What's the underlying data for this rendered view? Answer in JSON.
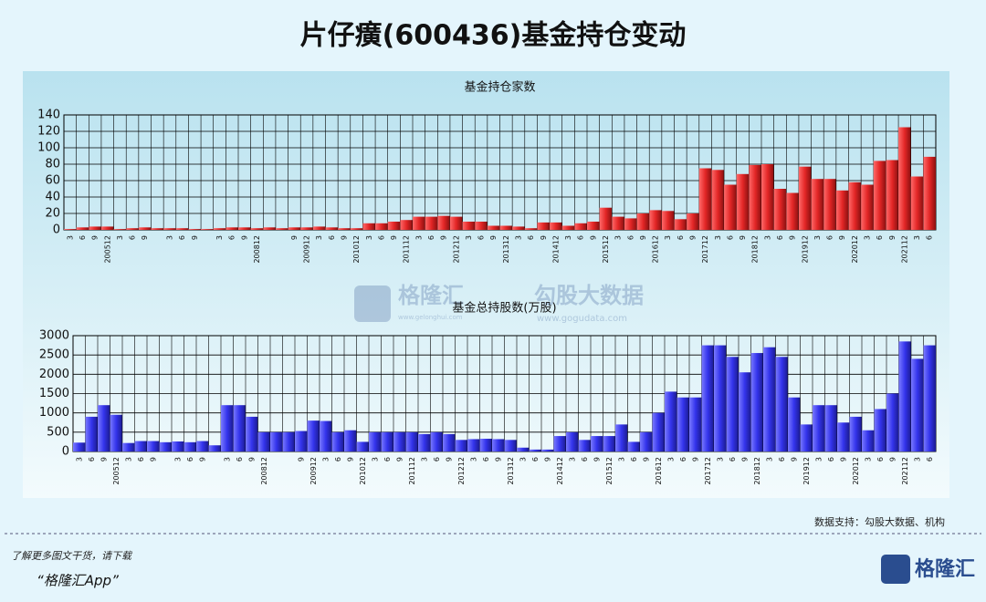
{
  "title": "片仔癀(600436)基金持仓变动",
  "chart_data": [
    {
      "type": "bar",
      "title": "基金持仓家数",
      "color": "#e32626",
      "categories": [
        "3",
        "6",
        "9",
        "200512",
        "3",
        "6",
        "9",
        null,
        "3",
        "6",
        "9",
        null,
        "3",
        "6",
        "9",
        "200812",
        null,
        null,
        "9",
        "200912",
        "3",
        "6",
        "9",
        "201012",
        "3",
        "6",
        "9",
        "201112",
        "3",
        "6",
        "9",
        "201212",
        "3",
        "6",
        "9",
        "201312",
        "3",
        "6",
        "9",
        "201412",
        "3",
        "6",
        "9",
        "201512",
        "3",
        "6",
        "9",
        "201612",
        "3",
        "6",
        "9",
        "201712",
        "3",
        "6",
        "9",
        "201812",
        "3",
        "6",
        "9",
        "201912",
        "3",
        "6",
        "9",
        "202012",
        "3",
        "6",
        "9",
        "202112",
        "3",
        "6"
      ],
      "values": [
        1,
        3,
        4,
        4,
        1,
        2,
        3,
        2,
        2,
        2,
        1,
        1,
        2,
        3,
        3,
        2,
        3,
        2,
        3,
        3,
        4,
        3,
        2,
        2,
        8,
        8,
        10,
        12,
        16,
        16,
        17,
        16,
        10,
        10,
        5,
        5,
        4,
        2,
        9,
        9,
        5,
        8,
        10,
        27,
        16,
        14,
        20,
        24,
        23,
        13,
        20,
        75,
        73,
        55,
        68,
        79,
        80,
        50,
        45,
        77,
        62,
        62,
        48,
        58,
        55,
        84,
        85,
        125,
        65,
        89
      ],
      "ylim": [
        0,
        140
      ],
      "yticks": [
        0,
        20,
        40,
        60,
        80,
        100,
        120,
        140
      ],
      "grid": true
    },
    {
      "type": "bar",
      "title": "基金总持股数(万股)",
      "color": "#3434ec",
      "categories": [
        "3",
        "6",
        "9",
        "200512",
        "3",
        "6",
        "9",
        null,
        "3",
        "6",
        "9",
        null,
        "3",
        "6",
        "9",
        "200812",
        null,
        null,
        "9",
        "200912",
        "3",
        "6",
        "9",
        "201012",
        "3",
        "6",
        "9",
        "201112",
        "3",
        "6",
        "9",
        "201212",
        "3",
        "6",
        "9",
        "201312",
        "3",
        "6",
        "9",
        "201412",
        "3",
        "6",
        "9",
        "201512",
        "3",
        "6",
        "9",
        "201612",
        "3",
        "6",
        "9",
        "201712",
        "3",
        "6",
        "9",
        "201812",
        "3",
        "6",
        "9",
        "201912",
        "3",
        "6",
        "9",
        "202012",
        "3",
        "6",
        "9",
        "202112",
        "3",
        "6"
      ],
      "values": [
        230,
        900,
        1200,
        950,
        220,
        270,
        270,
        240,
        260,
        240,
        270,
        160,
        1200,
        1200,
        900,
        500,
        500,
        500,
        530,
        800,
        790,
        500,
        550,
        250,
        500,
        500,
        500,
        500,
        450,
        500,
        450,
        300,
        320,
        330,
        320,
        300,
        100,
        50,
        50,
        400,
        500,
        300,
        400,
        400,
        700,
        250,
        500,
        1000,
        1550,
        1400,
        1400,
        2750,
        2750,
        2450,
        2050,
        2550,
        2700,
        2450,
        1400,
        700,
        1200,
        1200,
        750,
        900,
        550,
        1100,
        1500,
        2850,
        2400,
        2750
      ],
      "ylim": [
        0,
        3000
      ],
      "yticks": [
        0,
        500,
        1000,
        1500,
        2000,
        2500,
        3000
      ],
      "grid": true
    }
  ],
  "watermark": {
    "brand": "格隆汇",
    "brand_url": "www.gelonghui.com",
    "partner": "勾股大数据",
    "partner_url": "www.gogudata.com"
  },
  "footer": {
    "source": "数据支持：勾股大数据、机构",
    "promo": "了解更多图文干货，请下载",
    "app": "“格隆汇App”",
    "logo": "格隆汇"
  }
}
